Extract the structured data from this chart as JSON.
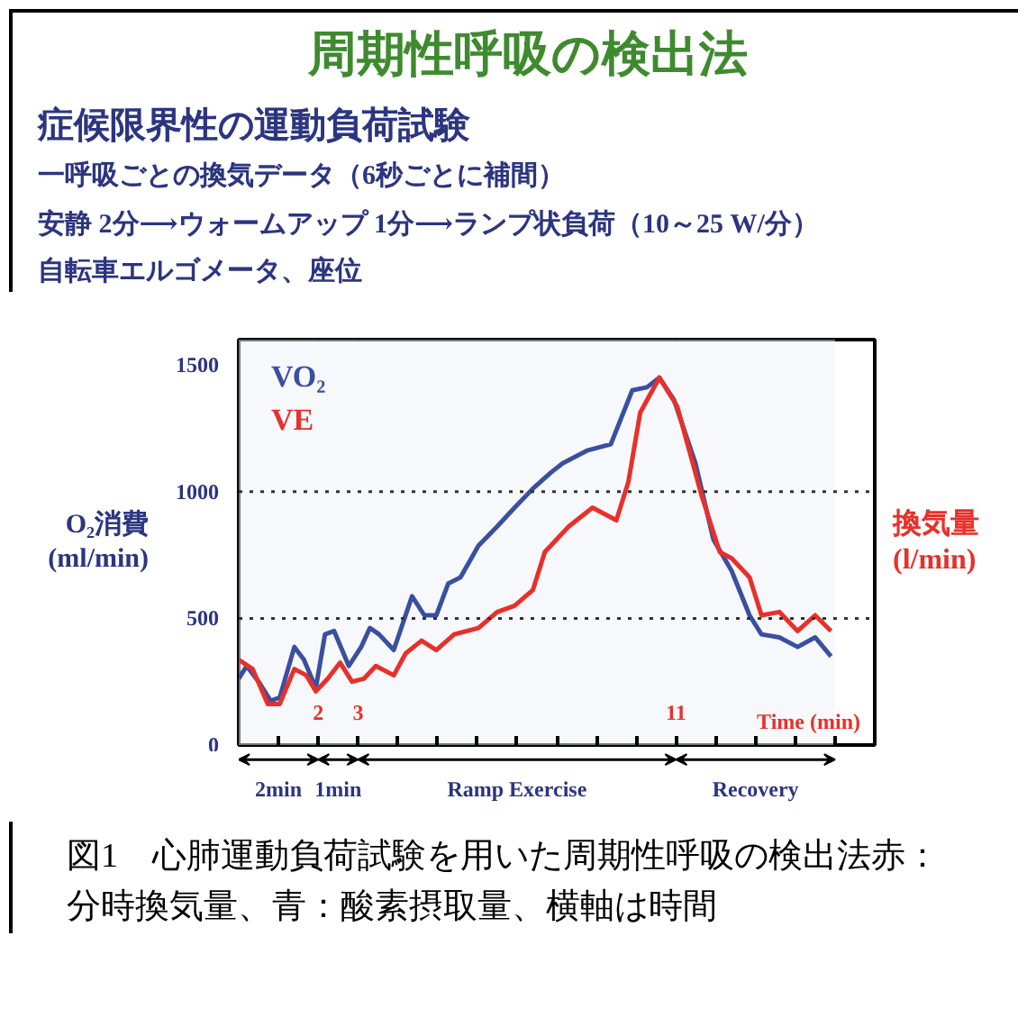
{
  "chart_data": {
    "type": "line",
    "title": "周期性呼吸の検出法",
    "subtitle": "症候限界性の運動負荷試験",
    "annotations": [
      "一呼吸ごとの換気データ（6秒ごとに補間）",
      "安静 2分⟶ウォームアップ 1分⟶ランプ状負荷（10～25 W/分）",
      "自転車エルゴメータ、座位",
      "図1　心肺運動負荷試験を用いた周期性呼吸の検出法赤：分時換気量、青：酸素摂取量、横軸は時間"
    ],
    "xlabel": "Time (min)",
    "ylabel": "O₂消費\n(ml/min)",
    "y2label": "換気量\n(l/min)",
    "xlim": [
      0,
      16
    ],
    "ylim": [
      0,
      1600
    ],
    "xticks": [
      {
        "value": 1,
        "label": null
      },
      2,
      3,
      {
        "value": 4,
        "label": null
      },
      {
        "value": 5,
        "label": null
      },
      {
        "value": 6,
        "label": null
      },
      {
        "value": 7,
        "label": null
      },
      {
        "value": 8,
        "label": null
      },
      {
        "value": 9,
        "label": null
      },
      {
        "value": 10,
        "label": null
      },
      11,
      {
        "value": 12,
        "label": null
      },
      {
        "value": 13,
        "label": null
      },
      {
        "value": 14,
        "label": null
      },
      {
        "value": 15,
        "label": null
      }
    ],
    "yticks": [
      0,
      500,
      1000,
      1500
    ],
    "ref_lines": [
      {
        "axis": "y",
        "value": 500,
        "line_style": "dotted",
        "color": "#333333"
      },
      {
        "axis": "y",
        "value": 1000,
        "line_style": "dotted",
        "color": "#333333"
      }
    ],
    "bands": [
      {
        "axis": "x",
        "from": 0,
        "to": 2,
        "label": "2min"
      },
      {
        "axis": "x",
        "from": 2,
        "to": 3,
        "label": "1min"
      },
      {
        "axis": "x",
        "from": 3,
        "to": 11,
        "label": "Ramp Exercise"
      },
      {
        "axis": "x",
        "from": 11,
        "to": 15,
        "label": "Recovery"
      }
    ],
    "series": [
      {
        "name": "VO₂",
        "color": "#3a4fa0",
        "x": [
          0,
          0.2,
          0.5,
          0.8,
          1.03,
          1.4,
          1.64,
          1.94,
          2.17,
          2.4,
          2.77,
          3.08,
          3.3,
          3.53,
          3.9,
          4.36,
          4.67,
          4.97,
          5.27,
          5.58,
          6.03,
          6.5,
          6.94,
          7.4,
          7.85,
          8.15,
          8.76,
          9.36,
          9.9,
          10.27,
          10.58,
          10.95,
          11.49,
          11.94,
          12.4,
          12.85,
          13.15,
          13.6,
          14.06,
          14.5,
          14.9
        ],
        "values": [
          262,
          312,
          250,
          175,
          187,
          387,
          337,
          225,
          437,
          450,
          312,
          387,
          462,
          437,
          375,
          587,
          512,
          512,
          637,
          662,
          787,
          862,
          937,
          1012,
          1075,
          1112,
          1162,
          1187,
          1400,
          1412,
          1450,
          1362,
          1112,
          812,
          687,
          512,
          437,
          425,
          387,
          425,
          350
        ]
      },
      {
        "name": "VE",
        "color": "#e8302a",
        "x": [
          0,
          0.35,
          0.73,
          1.03,
          1.4,
          1.7,
          1.94,
          2.24,
          2.55,
          2.85,
          3.15,
          3.45,
          3.9,
          4.2,
          4.6,
          4.97,
          5.42,
          6.03,
          6.5,
          6.94,
          7.4,
          7.7,
          8.3,
          8.9,
          9.5,
          9.8,
          10.1,
          10.58,
          11.03,
          11.64,
          12.1,
          12.4,
          12.85,
          13.15,
          13.6,
          14.06,
          14.5,
          14.9
        ],
        "values": [
          337,
          300,
          162,
          162,
          300,
          275,
          212,
          262,
          325,
          250,
          262,
          312,
          275,
          362,
          412,
          375,
          437,
          462,
          525,
          550,
          612,
          762,
          862,
          937,
          887,
          1037,
          1312,
          1450,
          1337,
          987,
          762,
          737,
          662,
          512,
          525,
          450,
          512,
          450
        ]
      }
    ]
  }
}
